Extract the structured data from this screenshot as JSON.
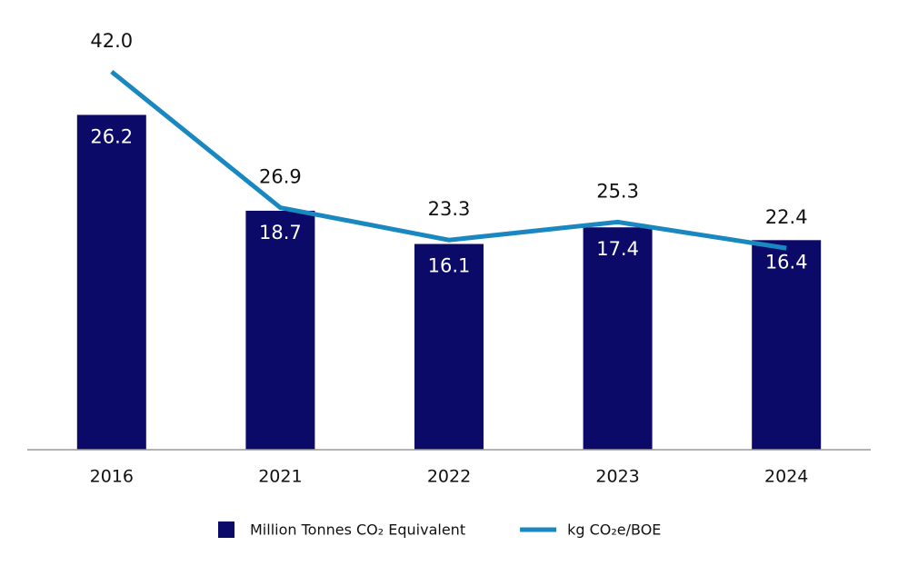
{
  "chart_data": {
    "type": "bar_line",
    "categories": [
      "2016",
      "2021",
      "2022",
      "2023",
      "2024"
    ],
    "series": [
      {
        "name": "Million Tonnes CO₂ Equivalent",
        "type": "bar",
        "color": "#0c0a68",
        "values": [
          26.2,
          18.7,
          16.1,
          17.4,
          16.4
        ]
      },
      {
        "name": "kg CO₂e/BOE",
        "type": "line",
        "axis": "y2",
        "color": "#1a88c0",
        "values": [
          42.0,
          26.9,
          23.3,
          25.3,
          22.4
        ],
        "value_labels": [
          "42.0",
          "26.9",
          "23.3",
          "25.3",
          "22.4"
        ]
      }
    ],
    "ylim": [
      0,
      30
    ],
    "y2lim": [
      0,
      42.6
    ],
    "legend": "bottom"
  }
}
